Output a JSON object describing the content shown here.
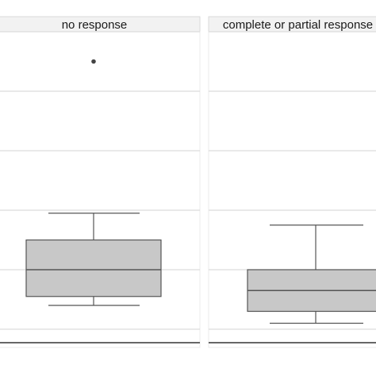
{
  "chart_data": {
    "type": "box",
    "facets": [
      {
        "label": "no response",
        "box": {
          "whisker_low": 0.4,
          "q1": 0.55,
          "median": 1.0,
          "q3": 1.5,
          "whisker_high": 1.95
        },
        "outliers": [
          4.5
        ]
      },
      {
        "label": "complete or partial response",
        "box": {
          "whisker_low": 0.1,
          "q1": 0.3,
          "median": 0.65,
          "q3": 1.0,
          "whisker_high": 1.75
        },
        "outliers": []
      }
    ],
    "ylim": [
      -0.2,
      5.0
    ],
    "grid": true,
    "title": "",
    "xlabel": "",
    "ylabel": ""
  },
  "colors": {
    "panel_bg": "#ffffff",
    "strip_bg": "#f2f2f2",
    "grid": "#dcdcdc",
    "box_fill": "#c8c8c8",
    "box_stroke": "#555555",
    "outlier": "#444444",
    "axis": "#333333"
  }
}
